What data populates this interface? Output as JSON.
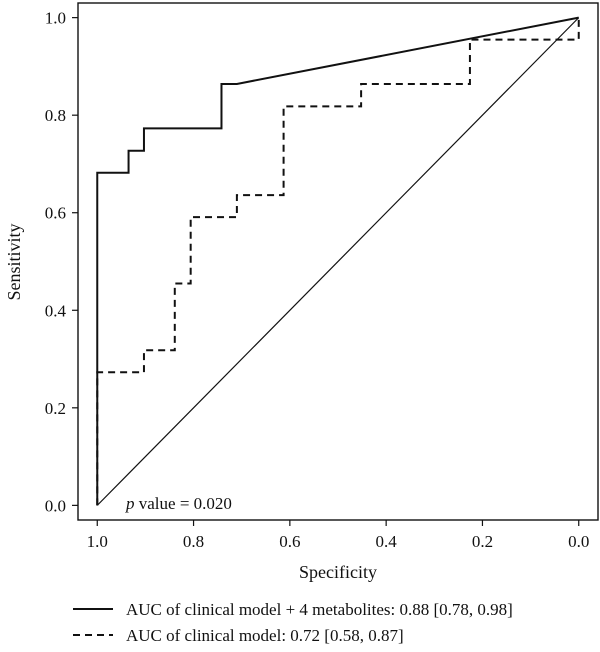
{
  "chart_data": {
    "type": "line",
    "xlabel": "Specificity",
    "ylabel": "Sensitivity",
    "xlim": [
      1.04,
      -0.04
    ],
    "ylim": [
      -0.03,
      1.03
    ],
    "x_reversed": true,
    "x_ticks": [
      1.0,
      0.8,
      0.6,
      0.4,
      0.2,
      0.0
    ],
    "x_tick_labels": [
      "1.0",
      "0.8",
      "0.6",
      "0.4",
      "0.2",
      "0.0"
    ],
    "y_ticks": [
      0.0,
      0.2,
      0.4,
      0.6,
      0.8,
      1.0
    ],
    "y_tick_labels": [
      "0.0",
      "0.2",
      "0.4",
      "0.6",
      "0.8",
      "1.0"
    ],
    "grid": false,
    "legend_position": "bottom",
    "annotation": {
      "italic": "p",
      "text": " value = 0.020"
    },
    "reference_line": {
      "x": [
        1.0,
        0.0
      ],
      "y": [
        0.0,
        1.0
      ],
      "color": "#111111"
    },
    "series": [
      {
        "name": "AUC of clinical model + 4 metabolites: 0.88 [0.78, 0.98]",
        "style": "solid",
        "color": "#111111",
        "x": [
          1.0,
          1.0,
          0.935,
          0.935,
          0.903,
          0.903,
          0.742,
          0.742,
          0.71,
          0.0
        ],
        "y": [
          0.0,
          0.682,
          0.682,
          0.727,
          0.727,
          0.773,
          0.773,
          0.864,
          0.864,
          1.0
        ]
      },
      {
        "name": "AUC of clinical model: 0.72 [0.58, 0.87]",
        "style": "dashed",
        "color": "#111111",
        "x": [
          1.0,
          1.0,
          0.903,
          0.903,
          0.839,
          0.839,
          0.806,
          0.806,
          0.71,
          0.71,
          0.613,
          0.613,
          0.452,
          0.452,
          0.226,
          0.226,
          0.0,
          0.0
        ],
        "y": [
          0.0,
          0.273,
          0.273,
          0.318,
          0.318,
          0.455,
          0.455,
          0.591,
          0.591,
          0.636,
          0.636,
          0.818,
          0.818,
          0.864,
          0.864,
          0.955,
          0.955,
          1.0
        ]
      }
    ]
  }
}
